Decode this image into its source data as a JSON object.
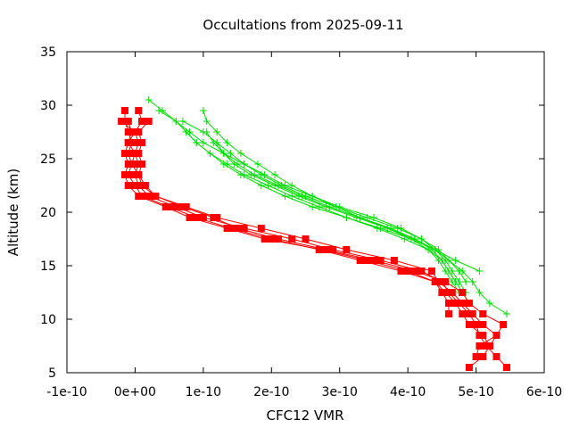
{
  "chart_data": {
    "type": "line",
    "title": "Occultations from 2025-09-11",
    "xlabel": "CFC12 VMR",
    "ylabel": "Altitude (km)",
    "xlim": [
      -1e-10,
      6e-10
    ],
    "ylim": [
      5,
      35
    ],
    "x_ticks": [
      {
        "value": -1e-10,
        "label": "-1e-10"
      },
      {
        "value": 0,
        "label": "0e+00"
      },
      {
        "value": 1e-10,
        "label": "1e-10"
      },
      {
        "value": 2e-10,
        "label": "2e-10"
      },
      {
        "value": 3e-10,
        "label": "3e-10"
      },
      {
        "value": 4e-10,
        "label": "4e-10"
      },
      {
        "value": 5e-10,
        "label": "5e-10"
      },
      {
        "value": 6e-10,
        "label": "6e-10"
      }
    ],
    "y_ticks": [
      {
        "value": 5,
        "label": "5"
      },
      {
        "value": 10,
        "label": "10"
      },
      {
        "value": 15,
        "label": "15"
      },
      {
        "value": 20,
        "label": "20"
      },
      {
        "value": 25,
        "label": "25"
      },
      {
        "value": 30,
        "label": "30"
      },
      {
        "value": 35,
        "label": "35"
      }
    ],
    "grid": false,
    "legend": "none",
    "colors": {
      "red_series": "#ff0000",
      "green_series": "#00dd00"
    },
    "series": [
      {
        "color": "#ff0000",
        "marker": "square",
        "y": [
          5.5,
          6.5,
          7.5,
          8.5,
          9.5,
          10.5,
          11.5,
          12.5,
          13.5,
          14.5,
          15.5,
          16.5,
          17.5,
          18.5,
          19.5,
          20.5,
          21.5,
          22.5,
          23.5,
          24.5,
          25.5,
          26.5,
          27.5,
          28.5,
          29.5
        ],
        "x": [
          4.9e-10,
          5.1e-10,
          5.2e-10,
          5.1e-10,
          4.9e-10,
          4.8e-10,
          4.7e-10,
          4.55e-10,
          4.4e-10,
          3.9e-10,
          3.3e-10,
          2.7e-10,
          2e-10,
          1.4e-10,
          9e-11,
          5e-11,
          1e-11,
          0.0,
          -1e-11,
          -5e-12,
          -1e-11,
          -5e-12,
          -1e-11,
          -1.5e-11,
          -1.5e-11
        ]
      },
      {
        "color": "#ff0000",
        "marker": "square",
        "y": [
          5.5,
          6.5,
          7.5,
          8.5,
          9.5,
          10.5,
          11.5,
          12.5,
          13.5,
          14.5,
          15.5,
          16.5,
          17.5,
          18.5,
          19.5,
          20.5,
          21.5,
          22.5,
          23.5,
          24.5,
          25.5,
          26.5,
          27.5,
          28.5,
          29.5
        ],
        "x": [
          5.45e-10,
          5.3e-10,
          5.15e-10,
          5.05e-10,
          5e-10,
          4.9e-10,
          4.75e-10,
          4.6e-10,
          4.5e-10,
          4.2e-10,
          3.6e-10,
          2.9e-10,
          2.3e-10,
          1.6e-10,
          1e-10,
          6e-11,
          2e-11,
          5e-12,
          0.0,
          5e-12,
          0.0,
          5e-12,
          0.0,
          1e-11,
          5e-12
        ]
      },
      {
        "color": "#ff0000",
        "marker": "square",
        "y": [
          6.5,
          7.5,
          8.5,
          9.5,
          10.5,
          11.5,
          12.5,
          13.5,
          14.5,
          15.5,
          16.5,
          17.5,
          18.5,
          19.5,
          20.5,
          21.5,
          22.5,
          23.5,
          24.5,
          25.5,
          26.5,
          27.5,
          28.5
        ],
        "x": [
          5e-10,
          5.05e-10,
          5.3e-10,
          5.1e-10,
          4.95e-10,
          4.8e-10,
          4.65e-10,
          4.45e-10,
          4.35e-10,
          3.8e-10,
          3.1e-10,
          2.5e-10,
          1.85e-10,
          1.2e-10,
          7.5e-11,
          3e-11,
          1e-11,
          5e-12,
          -5e-12,
          0.0,
          -1e-11,
          0.0,
          -2e-11
        ]
      },
      {
        "color": "#ff0000",
        "marker": "square",
        "y": [
          7.5,
          8.5,
          9.5,
          10.5,
          11.5,
          12.5,
          13.5,
          14.5,
          15.5,
          16.5,
          17.5,
          18.5,
          19.5,
          20.5,
          21.5,
          22.5,
          23.5,
          24.5,
          25.5,
          26.5,
          27.5,
          28.5
        ],
        "x": [
          5.2e-10,
          5.3e-10,
          5.4e-10,
          5.1e-10,
          4.9e-10,
          4.8e-10,
          4.55e-10,
          4.1e-10,
          3.5e-10,
          2.8e-10,
          2.1e-10,
          1.5e-10,
          1.15e-10,
          7e-11,
          3e-11,
          1.5e-11,
          5e-12,
          1e-11,
          5e-12,
          1e-11,
          5e-12,
          2e-11
        ]
      },
      {
        "color": "#ff0000",
        "marker": "square",
        "y": [
          10.5,
          11.5,
          12.5,
          13.5,
          14.5,
          15.5,
          16.5,
          17.5,
          18.5,
          19.5,
          20.5,
          21.5,
          22.5,
          23.5,
          24.5,
          25.5,
          26.5,
          27.5,
          28.5
        ],
        "x": [
          4.6e-10,
          4.6e-10,
          4.5e-10,
          4.4e-10,
          4e-10,
          3.4e-10,
          2.75e-10,
          1.9e-10,
          1.35e-10,
          8e-11,
          4.5e-11,
          5e-12,
          -1e-11,
          -1.5e-11,
          -1e-11,
          -1.5e-11,
          -1e-11,
          -5e-12,
          -1e-11
        ]
      },
      {
        "color": "#00dd00",
        "marker": "plus",
        "y": [
          10.5,
          11.5,
          12.5,
          13.5,
          14.5,
          15.5,
          16.5,
          17.5,
          18.5,
          19.5,
          20.5,
          21.5,
          22.5,
          23.5,
          24.5,
          25.5,
          26.5,
          27.5,
          28.5,
          29.5,
          30.5
        ],
        "x": [
          5.45e-10,
          5.2e-10,
          5.05e-10,
          4.95e-10,
          4.8e-10,
          4.6e-10,
          4.4e-10,
          4.2e-10,
          3.9e-10,
          3.5e-10,
          3e-10,
          2.6e-10,
          2.2e-10,
          1.9e-10,
          1.6e-10,
          1.3e-10,
          1e-10,
          8e-11,
          6e-11,
          4e-11,
          2e-11
        ]
      },
      {
        "color": "#00dd00",
        "marker": "plus",
        "y": [
          14.5,
          15.5,
          16.5,
          17.5,
          18.5,
          19.5,
          20.5,
          21.5,
          22.5,
          23.5,
          24.5,
          25.5,
          26.5,
          27.5,
          28.5,
          29.5
        ],
        "x": [
          5.05e-10,
          4.7e-10,
          4.4e-10,
          4.05e-10,
          3.7e-10,
          3.3e-10,
          2.95e-10,
          2.6e-10,
          2.3e-10,
          2.05e-10,
          1.8e-10,
          1.55e-10,
          1.35e-10,
          1.2e-10,
          1.05e-10,
          1e-10
        ]
      },
      {
        "color": "#00dd00",
        "marker": "plus",
        "y": [
          12.5,
          13.5,
          14.5,
          15.5,
          16.5,
          17.5,
          18.5,
          19.5,
          20.5,
          21.5,
          22.5,
          23.5,
          24.5,
          25.5,
          26.5,
          27.5,
          28.5,
          29.5
        ],
        "x": [
          4.75e-10,
          4.65e-10,
          4.55e-10,
          4.45e-10,
          4.3e-10,
          4.05e-10,
          3.6e-10,
          3.1e-10,
          2.6e-10,
          2.2e-10,
          1.85e-10,
          1.55e-10,
          1.3e-10,
          1.1e-10,
          9e-11,
          7.5e-11,
          6e-11,
          3.5e-11
        ]
      },
      {
        "color": "#00dd00",
        "marker": "plus",
        "y": [
          13.5,
          14.5,
          15.5,
          16.5,
          17.5,
          18.5,
          19.5,
          20.5,
          21.5,
          22.5,
          23.5,
          24.5,
          25.5,
          26.5,
          27.5,
          28.5
        ],
        "x": [
          4.85e-10,
          4.75e-10,
          4.6e-10,
          4.45e-10,
          4.2e-10,
          3.85e-10,
          3.4e-10,
          2.95e-10,
          2.5e-10,
          2.15e-10,
          1.85e-10,
          1.6e-10,
          1.4e-10,
          1.2e-10,
          1e-10,
          7e-11
        ]
      },
      {
        "color": "#00dd00",
        "marker": "plus",
        "y": [
          11.5,
          12.5,
          13.5,
          14.5,
          15.5,
          16.5,
          17.5,
          18.5,
          19.5,
          20.5,
          21.5,
          22.5,
          23.5,
          24.5,
          25.5,
          26.5,
          27.5
        ],
        "x": [
          4.9e-10,
          4.8e-10,
          4.7e-10,
          4.6e-10,
          4.5e-10,
          4.3e-10,
          3.95e-10,
          3.55e-10,
          3.1e-10,
          2.7e-10,
          2.3e-10,
          1.95e-10,
          1.6e-10,
          1.35e-10,
          1.1e-10,
          9e-11,
          7.5e-11
        ]
      },
      {
        "color": "#00dd00",
        "marker": "plus",
        "y": [
          13.5,
          14.5,
          15.5,
          16.5,
          17.5,
          18.5,
          19.5,
          20.5,
          21.5,
          22.5,
          23.5,
          24.5,
          25.5,
          26.5,
          27.5
        ],
        "x": [
          4.7e-10,
          4.6e-10,
          4.5e-10,
          4.35e-10,
          4.1e-10,
          3.75e-10,
          3.3e-10,
          2.85e-10,
          2.45e-10,
          2.1e-10,
          1.75e-10,
          1.5e-10,
          1.3e-10,
          1.15e-10,
          1.05e-10
        ]
      },
      {
        "color": "#00dd00",
        "marker": "plus",
        "y": [
          12.5,
          13.5,
          14.5,
          15.5,
          16.5,
          17.5,
          18.5,
          19.5,
          20.5,
          21.5,
          22.5,
          23.5,
          24.5,
          25.5,
          26.5
        ],
        "x": [
          4.85e-10,
          4.75e-10,
          4.65e-10,
          4.55e-10,
          4.4e-10,
          4.1e-10,
          3.7e-10,
          3.25e-10,
          2.8e-10,
          2.4e-10,
          2.05e-10,
          1.7e-10,
          1.45e-10,
          1.3e-10,
          1.2e-10
        ]
      }
    ]
  }
}
